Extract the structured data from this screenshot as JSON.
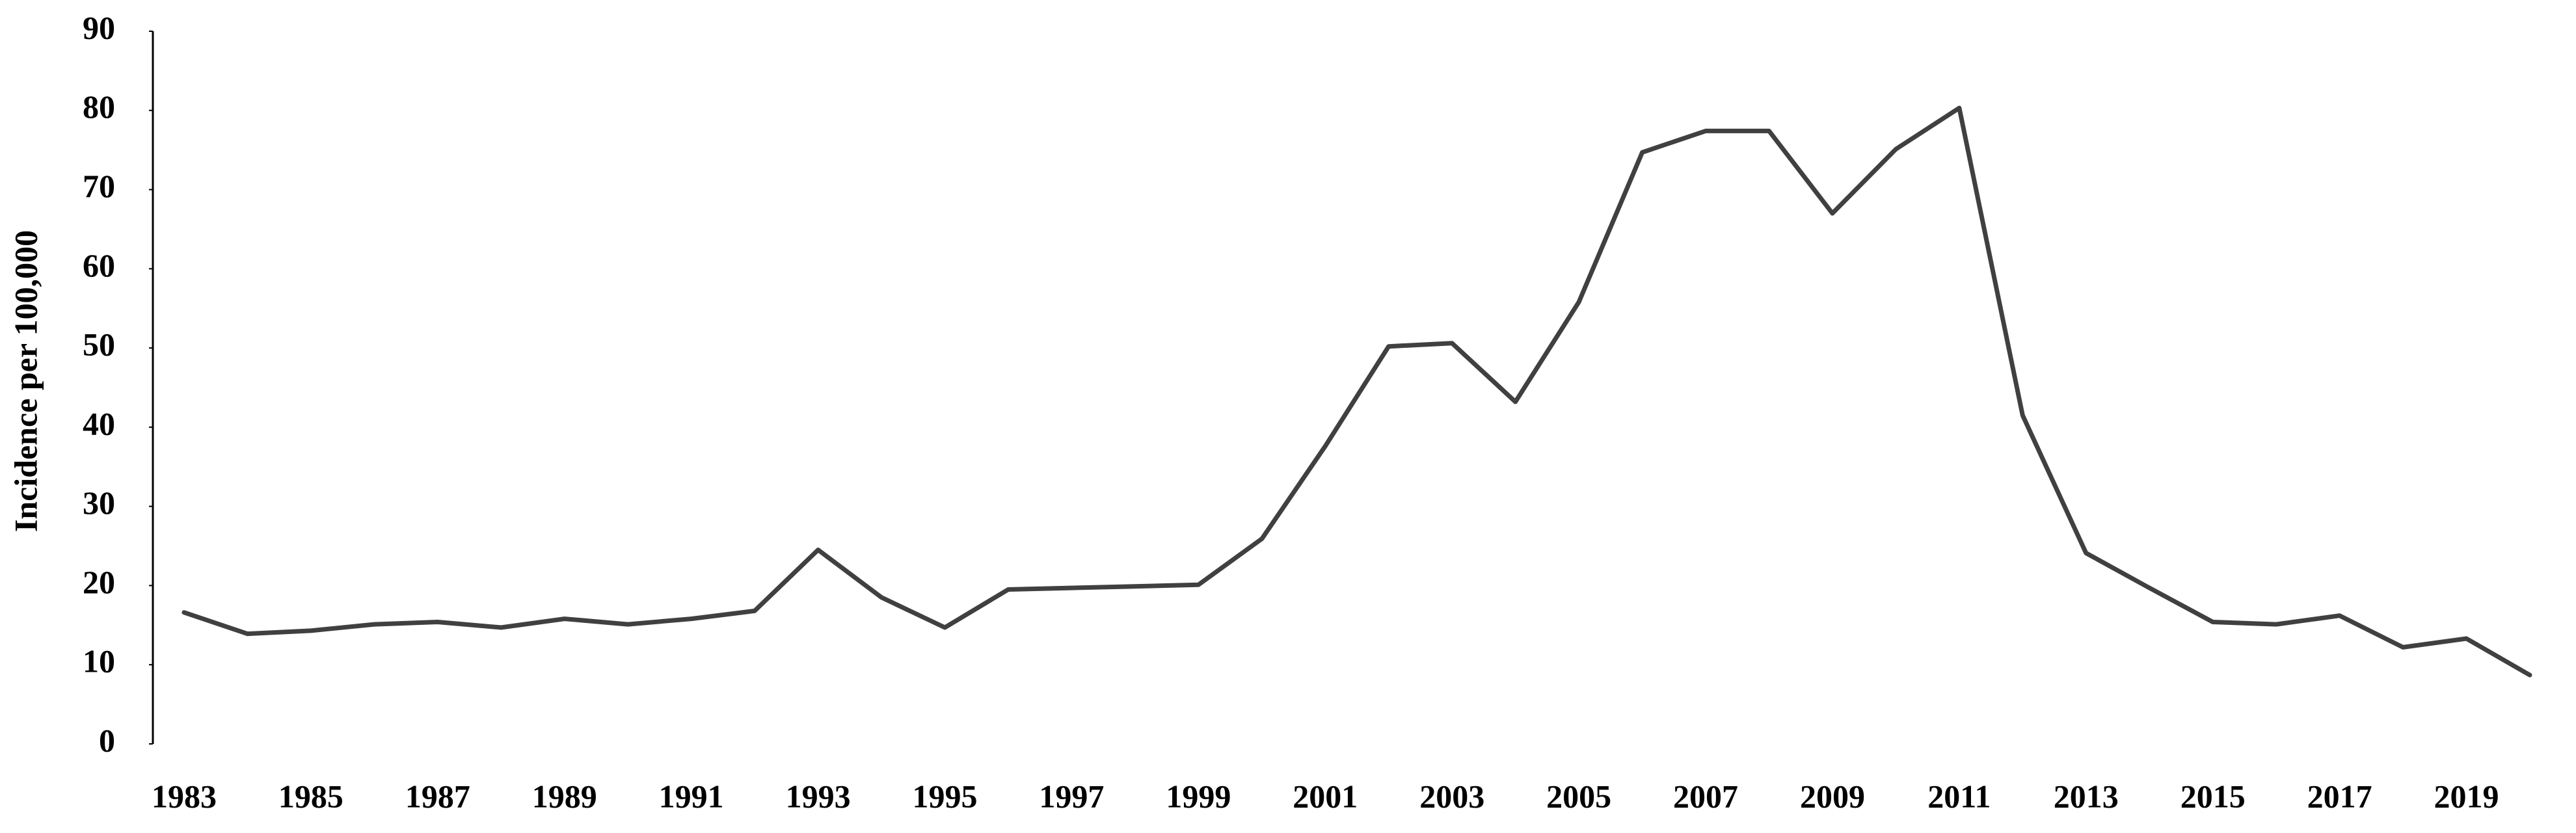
{
  "chart_data": {
    "type": "line",
    "y_label": "Incidence per 100,000",
    "x": [
      1983,
      1984,
      1985,
      1986,
      1987,
      1988,
      1989,
      1990,
      1991,
      1992,
      1993,
      1994,
      1995,
      1996,
      1997,
      1998,
      1999,
      2000,
      2001,
      2002,
      2003,
      2004,
      2005,
      2006,
      2007,
      2008,
      2009,
      2010,
      2011,
      2012,
      2013,
      2014,
      2015,
      2016,
      2017,
      2018,
      2019,
      2020
    ],
    "values": [
      16.6,
      13.9,
      14.3,
      15.1,
      15.4,
      14.7,
      15.8,
      15.1,
      15.8,
      16.8,
      24.5,
      18.5,
      14.7,
      19.5,
      19.7,
      19.9,
      20.1,
      25.9,
      37.6,
      50.2,
      50.6,
      43.2,
      55.8,
      74.7,
      77.4,
      77.4,
      67.0,
      75.1,
      80.3,
      41.5,
      24.1,
      19.7,
      15.4,
      15.1,
      16.2,
      12.2,
      13.3,
      8.7
    ],
    "color": "#404040",
    "xlim": [
      1983,
      2020
    ],
    "xticks": [
      1983,
      1985,
      1987,
      1989,
      1991,
      1993,
      1995,
      1997,
      1999,
      2001,
      2003,
      2005,
      2007,
      2009,
      2011,
      2013,
      2015,
      2017,
      2019
    ],
    "ylim": [
      0,
      90
    ],
    "yticks": [
      0,
      10,
      20,
      30,
      40,
      50,
      60,
      70,
      80,
      90
    ],
    "grid": false
  }
}
